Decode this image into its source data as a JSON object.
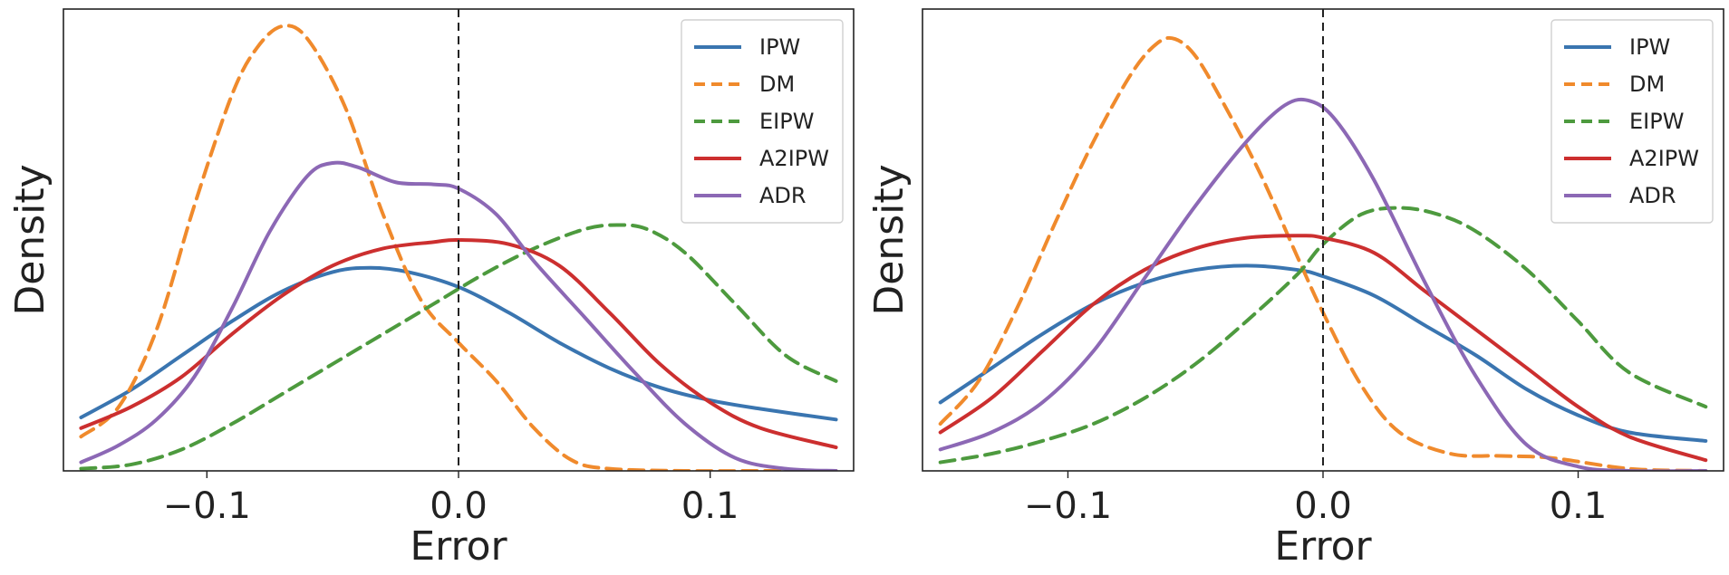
{
  "chart_data": [
    {
      "type": "line",
      "title": "",
      "xlabel": "Error",
      "ylabel": "Density",
      "xlim": [
        -0.157,
        0.157
      ],
      "ylim": [
        0,
        1.08
      ],
      "xticks": [
        -0.1,
        0.0,
        0.1
      ],
      "xtick_labels": [
        "−0.1",
        "0.0",
        "0.1"
      ],
      "reference_line_x": 0.0,
      "legend_position": "top-right",
      "series": [
        {
          "name": "IPW",
          "color": "#3a75b0",
          "dashed": false,
          "x": [
            -0.15,
            -0.13,
            -0.11,
            -0.09,
            -0.07,
            -0.05,
            -0.035,
            -0.02,
            0.0,
            0.02,
            0.04,
            0.06,
            0.08,
            0.1,
            0.12,
            0.15
          ],
          "y": [
            0.125,
            0.19,
            0.27,
            0.35,
            0.42,
            0.465,
            0.475,
            0.465,
            0.43,
            0.37,
            0.3,
            0.24,
            0.195,
            0.165,
            0.145,
            0.12
          ]
        },
        {
          "name": "DM",
          "color": "#f08a2c",
          "dashed": true,
          "x": [
            -0.15,
            -0.135,
            -0.12,
            -0.105,
            -0.09,
            -0.08,
            -0.07,
            -0.06,
            -0.045,
            -0.03,
            -0.015,
            0.0,
            0.015,
            0.03,
            0.045,
            0.06,
            0.09,
            0.12,
            0.15
          ],
          "y": [
            0.08,
            0.15,
            0.33,
            0.62,
            0.88,
            0.99,
            1.04,
            1.01,
            0.85,
            0.6,
            0.4,
            0.3,
            0.21,
            0.1,
            0.025,
            0.005,
            0.0,
            0.0,
            0.0
          ]
        },
        {
          "name": "EIPW",
          "color": "#4d9a3e",
          "dashed": true,
          "x": [
            -0.15,
            -0.13,
            -0.11,
            -0.09,
            -0.07,
            -0.05,
            -0.03,
            -0.01,
            0.01,
            0.03,
            0.05,
            0.063,
            0.075,
            0.09,
            0.11,
            0.13,
            0.15
          ],
          "y": [
            0.005,
            0.015,
            0.05,
            0.11,
            0.18,
            0.25,
            0.32,
            0.39,
            0.46,
            0.52,
            0.565,
            0.575,
            0.565,
            0.51,
            0.39,
            0.27,
            0.21
          ]
        },
        {
          "name": "A2IPW",
          "color": "#cc2f2f",
          "dashed": false,
          "x": [
            -0.15,
            -0.13,
            -0.11,
            -0.09,
            -0.07,
            -0.05,
            -0.03,
            -0.01,
            0.0,
            0.02,
            0.04,
            0.06,
            0.08,
            0.1,
            0.12,
            0.15
          ],
          "y": [
            0.1,
            0.15,
            0.22,
            0.32,
            0.41,
            0.48,
            0.52,
            0.535,
            0.54,
            0.53,
            0.48,
            0.37,
            0.25,
            0.16,
            0.1,
            0.055
          ]
        },
        {
          "name": "ADR",
          "color": "#8c68b5",
          "dashed": false,
          "x": [
            -0.15,
            -0.135,
            -0.12,
            -0.105,
            -0.09,
            -0.075,
            -0.06,
            -0.05,
            -0.04,
            -0.025,
            -0.01,
            0.0,
            0.015,
            0.03,
            0.05,
            0.07,
            0.09,
            0.11,
            0.13,
            0.15
          ],
          "y": [
            0.02,
            0.06,
            0.12,
            0.22,
            0.38,
            0.56,
            0.69,
            0.72,
            0.71,
            0.675,
            0.67,
            0.66,
            0.6,
            0.49,
            0.36,
            0.23,
            0.11,
            0.03,
            0.005,
            0.0
          ]
        }
      ]
    },
    {
      "type": "line",
      "title": "",
      "xlabel": "Error",
      "ylabel": "Density",
      "xlim": [
        -0.157,
        0.157
      ],
      "ylim": [
        0,
        1.08
      ],
      "xticks": [
        -0.1,
        0.0,
        0.1
      ],
      "xtick_labels": [
        "−0.1",
        "0.0",
        "0.1"
      ],
      "reference_line_x": 0.0,
      "legend_position": "top-right",
      "series": [
        {
          "name": "IPW",
          "color": "#3a75b0",
          "dashed": false,
          "x": [
            -0.15,
            -0.13,
            -0.11,
            -0.09,
            -0.07,
            -0.05,
            -0.03,
            -0.01,
            0.0,
            0.02,
            0.04,
            0.06,
            0.08,
            0.1,
            0.12,
            0.15
          ],
          "y": [
            0.16,
            0.24,
            0.32,
            0.39,
            0.44,
            0.47,
            0.48,
            0.47,
            0.455,
            0.41,
            0.34,
            0.27,
            0.19,
            0.13,
            0.09,
            0.07
          ]
        },
        {
          "name": "DM",
          "color": "#f08a2c",
          "dashed": true,
          "x": [
            -0.15,
            -0.135,
            -0.12,
            -0.105,
            -0.09,
            -0.075,
            -0.065,
            -0.058,
            -0.05,
            -0.04,
            -0.025,
            -0.01,
            0.0,
            0.015,
            0.03,
            0.05,
            0.07,
            0.09,
            0.12,
            0.15
          ],
          "y": [
            0.11,
            0.21,
            0.38,
            0.58,
            0.77,
            0.93,
            1.0,
            1.01,
            0.97,
            0.87,
            0.7,
            0.5,
            0.37,
            0.2,
            0.09,
            0.04,
            0.035,
            0.03,
            0.005,
            0.0
          ]
        },
        {
          "name": "EIPW",
          "color": "#4d9a3e",
          "dashed": true,
          "x": [
            -0.15,
            -0.13,
            -0.11,
            -0.09,
            -0.07,
            -0.05,
            -0.03,
            -0.01,
            0.0,
            0.015,
            0.03,
            0.045,
            0.06,
            0.08,
            0.1,
            0.12,
            0.15
          ],
          "y": [
            0.02,
            0.04,
            0.07,
            0.11,
            0.17,
            0.25,
            0.35,
            0.46,
            0.53,
            0.6,
            0.615,
            0.6,
            0.56,
            0.47,
            0.35,
            0.23,
            0.15
          ]
        },
        {
          "name": "A2IPW",
          "color": "#cc2f2f",
          "dashed": false,
          "x": [
            -0.15,
            -0.13,
            -0.11,
            -0.09,
            -0.07,
            -0.05,
            -0.03,
            -0.01,
            0.0,
            0.02,
            0.04,
            0.06,
            0.08,
            0.1,
            0.12,
            0.15
          ],
          "y": [
            0.09,
            0.17,
            0.28,
            0.39,
            0.47,
            0.52,
            0.545,
            0.55,
            0.545,
            0.51,
            0.42,
            0.33,
            0.24,
            0.15,
            0.08,
            0.025
          ]
        },
        {
          "name": "ADR",
          "color": "#8c68b5",
          "dashed": false,
          "x": [
            -0.15,
            -0.13,
            -0.11,
            -0.09,
            -0.07,
            -0.05,
            -0.03,
            -0.015,
            -0.005,
            0.005,
            0.02,
            0.04,
            0.06,
            0.08,
            0.1,
            0.12,
            0.15
          ],
          "y": [
            0.05,
            0.09,
            0.16,
            0.28,
            0.45,
            0.62,
            0.77,
            0.855,
            0.865,
            0.82,
            0.68,
            0.44,
            0.22,
            0.06,
            0.01,
            0.0,
            0.0
          ]
        }
      ]
    }
  ]
}
